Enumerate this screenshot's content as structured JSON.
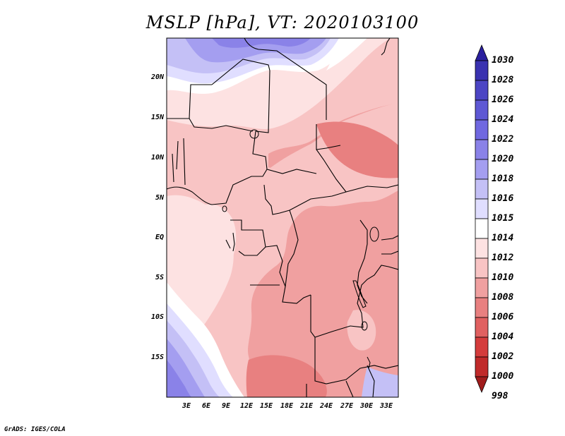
{
  "title": "MSLP [hPa], VT: 2020103100",
  "y_ticks": [
    "20N",
    "15N",
    "10N",
    "5N",
    "EQ",
    "5S",
    "10S",
    "15S"
  ],
  "x_ticks": [
    "3E",
    "6E",
    "9E",
    "12E",
    "15E",
    "18E",
    "21E",
    "24E",
    "27E",
    "30E",
    "33E"
  ],
  "colorbar": {
    "labels": [
      "1030",
      "1028",
      "1026",
      "1024",
      "1022",
      "1020",
      "1018",
      "1016",
      "1015",
      "1014",
      "1012",
      "1010",
      "1008",
      "1006",
      "1004",
      "1002",
      "1000",
      "998"
    ],
    "colors": [
      "#2a1f9e",
      "#3a32b0",
      "#4c45c4",
      "#5e58d4",
      "#7068e0",
      "#8a82e8",
      "#a49ef0",
      "#c4c0f6",
      "#e0deff",
      "#ffffff",
      "#fde2e2",
      "#f8c4c4",
      "#f0a0a0",
      "#e88080",
      "#e06060",
      "#d43c3c",
      "#c02a2a",
      "#a01c1c"
    ]
  },
  "credit": "GrADS: IGES/COLA"
}
